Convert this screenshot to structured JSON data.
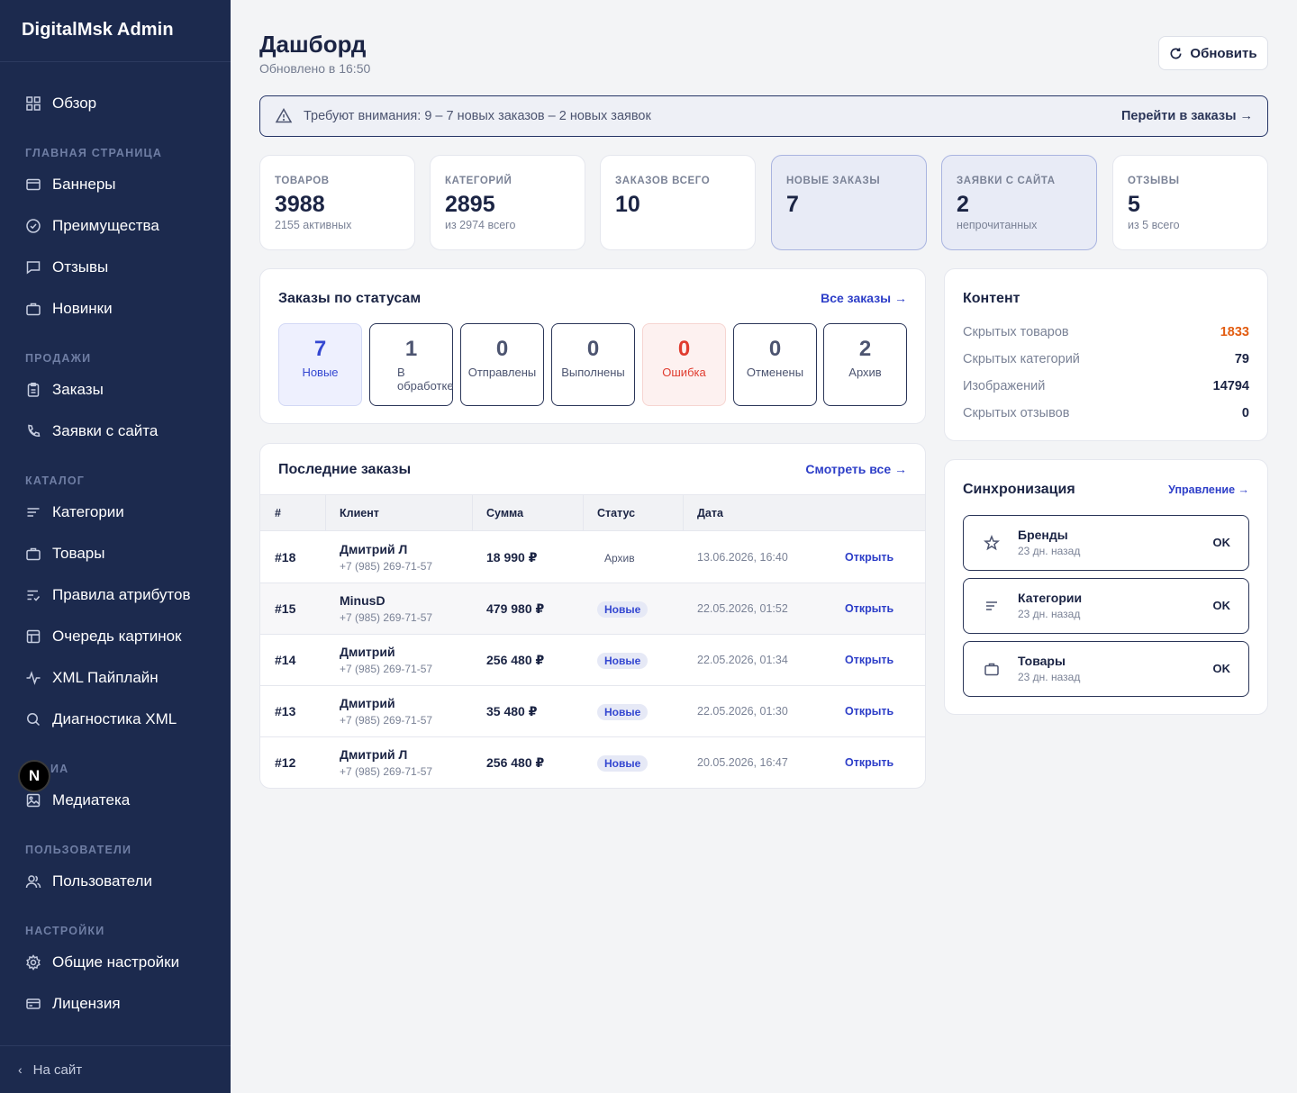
{
  "sidebar": {
    "brand": "DigitalMsk Admin",
    "overview": "Обзор",
    "sections": {
      "home": "ГЛАВНАЯ СТРАНИЦА",
      "sales": "ПРОДАЖИ",
      "catalog": "КАТАЛОГ",
      "media": "ИА",
      "users": "ПОЛЬЗОВАТЕЛИ",
      "settings": "НАСТРОЙКИ"
    },
    "items": {
      "banners": "Баннеры",
      "advantages": "Преимущества",
      "reviews": "Отзывы",
      "novelties": "Новинки",
      "orders": "Заказы",
      "requests": "Заявки с сайта",
      "categories": "Категории",
      "products": "Товары",
      "attr_rules": "Правила атрибутов",
      "image_queue": "Очередь картинок",
      "xml_pipeline": "XML Пайплайн",
      "xml_diag": "Диагностика XML",
      "media_library": "Медиатека",
      "users": "Пользователи",
      "general_settings": "Общие настройки",
      "license": "Лицензия"
    },
    "footer": "На сайт",
    "badge": "N"
  },
  "header": {
    "title": "Дашборд",
    "updated": "Обновлено в 16:50",
    "refresh": "Обновить"
  },
  "alert": {
    "text": "Требуют внимания: 9 – 7 новых заказов – 2 новых заявок",
    "link": "Перейти в заказы →"
  },
  "stats": [
    {
      "label": "ТОВАРОВ",
      "value": "3988",
      "sub": "2155 активных"
    },
    {
      "label": "КАТЕГОРИЙ",
      "value": "2895",
      "sub": "из 2974 всего"
    },
    {
      "label": "ЗАКАЗОВ ВСЕГО",
      "value": "10",
      "sub": ""
    },
    {
      "label": "НОВЫЕ ЗАКАЗЫ",
      "value": "7",
      "sub": ""
    },
    {
      "label": "ЗАЯВКИ С САЙТА",
      "value": "2",
      "sub": "непрочитанных"
    },
    {
      "label": "ОТЗЫВЫ",
      "value": "5",
      "sub": "из 5 всего"
    }
  ],
  "orders_by_status": {
    "title": "Заказы по статусам",
    "link": "Все заказы →",
    "items": [
      {
        "count": "7",
        "name": "Новые"
      },
      {
        "count": "1",
        "name": "В обработке"
      },
      {
        "count": "0",
        "name": "Отправлены"
      },
      {
        "count": "0",
        "name": "Выполнены"
      },
      {
        "count": "0",
        "name": "Ошибка"
      },
      {
        "count": "0",
        "name": "Отменены"
      },
      {
        "count": "2",
        "name": "Архив"
      }
    ]
  },
  "recent_orders": {
    "title": "Последние заказы",
    "link": "Смотреть все →",
    "columns": [
      "#",
      "Клиент",
      "Сумма",
      "Статус",
      "Дата"
    ],
    "rows": [
      {
        "id": "#18",
        "client": "Дмитрий Л",
        "phone": "+7 (985) 269-71-57",
        "sum": "18 990 ₽",
        "status": "Архив",
        "date": "13.06.2026, 16:40",
        "action": "Открыть"
      },
      {
        "id": "#15",
        "client": "MinusD",
        "phone": "+7 (985) 269-71-57",
        "sum": "479 980 ₽",
        "status": "Новые",
        "date": "22.05.2026, 01:52",
        "action": "Открыть"
      },
      {
        "id": "#14",
        "client": "Дмитрий",
        "phone": "+7 (985) 269-71-57",
        "sum": "256 480 ₽",
        "status": "Новые",
        "date": "22.05.2026, 01:34",
        "action": "Открыть"
      },
      {
        "id": "#13",
        "client": "Дмитрий",
        "phone": "+7 (985) 269-71-57",
        "sum": "35 480 ₽",
        "status": "Новые",
        "date": "22.05.2026, 01:30",
        "action": "Открыть"
      },
      {
        "id": "#12",
        "client": "Дмитрий Л",
        "phone": "+7 (985) 269-71-57",
        "sum": "256 480 ₽",
        "status": "Новые",
        "date": "20.05.2026, 16:47",
        "action": "Открыть"
      }
    ]
  },
  "content": {
    "title": "Контент",
    "rows": [
      {
        "label": "Скрытых товаров",
        "value": "1833"
      },
      {
        "label": "Скрытых категорий",
        "value": "79"
      },
      {
        "label": "Изображений",
        "value": "14794"
      },
      {
        "label": "Скрытых отзывов",
        "value": "0"
      }
    ]
  },
  "sync": {
    "title": "Синхронизация",
    "link": "Управление →",
    "items": [
      {
        "name": "Бренды",
        "ago": "23 дн. назад",
        "status": "OK",
        "icon": "star-icon"
      },
      {
        "name": "Категории",
        "ago": "23 дн. назад",
        "status": "OK",
        "icon": "lines-icon"
      },
      {
        "name": "Товары",
        "ago": "23 дн. назад",
        "status": "OK",
        "icon": "briefcase-icon"
      }
    ]
  },
  "colors": {
    "sidebar": "#1c2a4e",
    "accent": "#2d3ec8",
    "error": "#e03c2f",
    "warning_value": "#e25c10"
  }
}
